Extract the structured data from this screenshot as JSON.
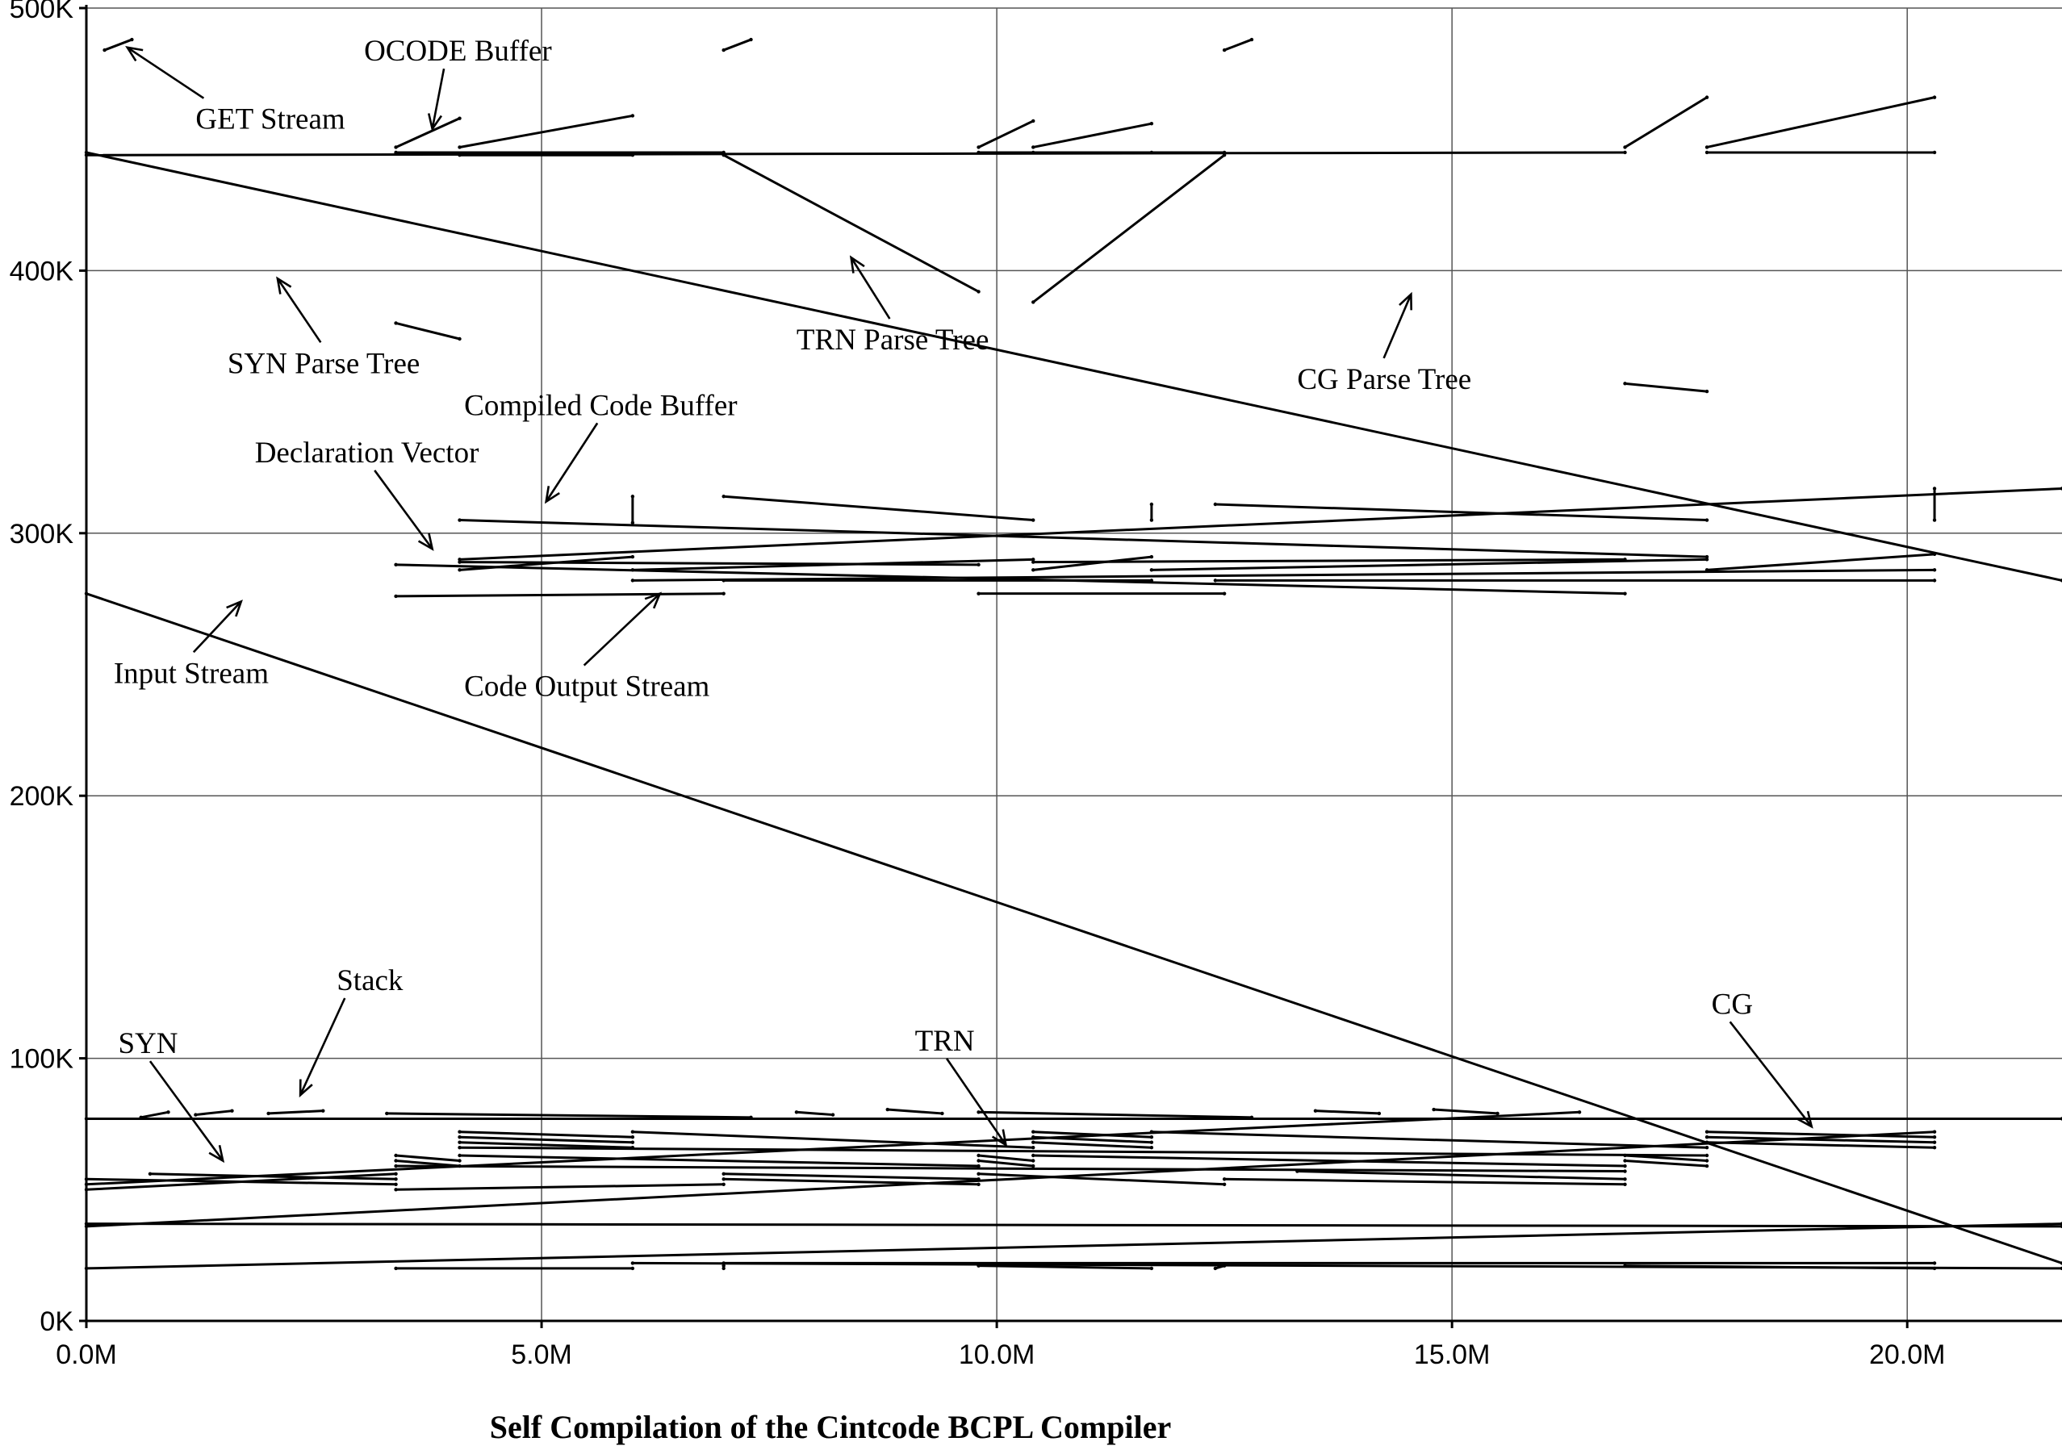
{
  "chart_data": {
    "type": "scatter",
    "title": "Self Compilation of the Cintcode BCPL Compiler",
    "xlabel": "",
    "ylabel": "",
    "xlim": [
      0,
      21700000
    ],
    "ylim": [
      0,
      500000
    ],
    "x_ticks": [
      {
        "value": 0,
        "label": "0.0M"
      },
      {
        "value": 5000000,
        "label": "5.0M"
      },
      {
        "value": 10000000,
        "label": "10.0M"
      },
      {
        "value": 15000000,
        "label": "15.0M"
      },
      {
        "value": 20000000,
        "label": "20.0M"
      }
    ],
    "y_ticks": [
      {
        "value": 0,
        "label": "0K"
      },
      {
        "value": 100000,
        "label": "100K"
      },
      {
        "value": 200000,
        "label": "200K"
      },
      {
        "value": 300000,
        "label": "300K"
      },
      {
        "value": 400000,
        "label": "400K"
      },
      {
        "value": 500000,
        "label": "500K"
      }
    ],
    "grid": true,
    "colors": {
      "ink": "#000000",
      "grid": "#555555",
      "background": "#ffffff"
    },
    "annotations": [
      {
        "text": "GET Stream",
        "x": 1200000,
        "y": 454000,
        "arrow_to": [
          450000,
          485000
        ]
      },
      {
        "text": "OCODE Buffer",
        "x": 3050000,
        "y": 480000,
        "arrow_to": [
          3800000,
          454000
        ]
      },
      {
        "text": "SYN Parse Tree",
        "x": 1550000,
        "y": 361000,
        "arrow_to": [
          2100000,
          397000
        ]
      },
      {
        "text": "TRN Parse Tree",
        "x": 7800000,
        "y": 370000,
        "arrow_to": [
          8400000,
          405000
        ]
      },
      {
        "text": "CG Parse Tree",
        "x": 13300000,
        "y": 355000,
        "arrow_to": [
          14550000,
          391000
        ]
      },
      {
        "text": "Compiled Code Buffer",
        "x": 4150000,
        "y": 345000,
        "arrow_to": [
          5050000,
          312000
        ]
      },
      {
        "text": "Declaration Vector",
        "x": 1850000,
        "y": 327000,
        "arrow_to": [
          3800000,
          294000
        ]
      },
      {
        "text": "Input Stream",
        "x": 300000,
        "y": 243000,
        "arrow_to": [
          1700000,
          274000
        ]
      },
      {
        "text": "Code Output Stream",
        "x": 4150000,
        "y": 238000,
        "arrow_to": [
          6300000,
          277000
        ]
      },
      {
        "text": "Stack",
        "x": 2750000,
        "y": 126000,
        "arrow_to": [
          2350000,
          86000
        ]
      },
      {
        "text": "SYN",
        "x": 350000,
        "y": 102000,
        "arrow_to": [
          1500000,
          61000
        ]
      },
      {
        "text": "TRN",
        "x": 9100000,
        "y": 103000,
        "arrow_to": [
          10100000,
          67000
        ]
      },
      {
        "text": "CG",
        "x": 17850000,
        "y": 117000,
        "arrow_to": [
          18950000,
          74000
        ]
      }
    ],
    "series": [
      {
        "values": [
          {
            "x": 0,
            "y": 77000
          },
          {
            "x": 21700000,
            "y": 77000
          },
          {
            "x": 600000,
            "y": 77500
          },
          {
            "x": 900000,
            "y": 79500
          },
          {
            "x": 1200000,
            "y": 78500
          },
          {
            "x": 1600000,
            "y": 80000
          },
          {
            "x": 2000000,
            "y": 79000
          },
          {
            "x": 2600000,
            "y": 80000
          },
          {
            "x": 3300000,
            "y": 79000
          },
          {
            "x": 7300000,
            "y": 77500
          },
          {
            "x": 7800000,
            "y": 79500
          },
          {
            "x": 8200000,
            "y": 78500
          },
          {
            "x": 8800000,
            "y": 80500
          },
          {
            "x": 9400000,
            "y": 79000
          },
          {
            "x": 9800000,
            "y": 79500
          },
          {
            "x": 12800000,
            "y": 77500
          },
          {
            "x": 13500000,
            "y": 80000
          },
          {
            "x": 14200000,
            "y": 79000
          },
          {
            "x": 14800000,
            "y": 80500
          },
          {
            "x": 15500000,
            "y": 79000
          },
          {
            "x": 16400000,
            "y": 79500
          },
          {
            "x": 0,
            "y": 52000
          },
          {
            "x": 3400000,
            "y": 52000
          },
          {
            "x": 0,
            "y": 54000
          },
          {
            "x": 3400000,
            "y": 54000
          },
          {
            "x": 700000,
            "y": 56000
          },
          {
            "x": 3400000,
            "y": 56000
          },
          {
            "x": 0,
            "y": 50000
          },
          {
            "x": 3400000,
            "y": 50000
          },
          {
            "x": 7000000,
            "y": 52000
          },
          {
            "x": 9800000,
            "y": 52000
          },
          {
            "x": 7000000,
            "y": 54000
          },
          {
            "x": 9800000,
            "y": 54000
          },
          {
            "x": 7000000,
            "y": 56000
          },
          {
            "x": 9800000,
            "y": 56000
          },
          {
            "x": 12500000,
            "y": 52000
          },
          {
            "x": 16900000,
            "y": 52000
          },
          {
            "x": 12500000,
            "y": 54000
          },
          {
            "x": 16900000,
            "y": 54000
          },
          {
            "x": 13300000,
            "y": 57000
          },
          {
            "x": 16900000,
            "y": 57000
          },
          {
            "x": 3400000,
            "y": 59000
          },
          {
            "x": 4100000,
            "y": 59000
          },
          {
            "x": 3400000,
            "y": 61000
          },
          {
            "x": 4100000,
            "y": 61000
          },
          {
            "x": 3400000,
            "y": 63000
          },
          {
            "x": 4100000,
            "y": 63000
          },
          {
            "x": 9800000,
            "y": 59000
          },
          {
            "x": 10400000,
            "y": 59000
          },
          {
            "x": 9800000,
            "y": 61000
          },
          {
            "x": 10400000,
            "y": 61000
          },
          {
            "x": 9800000,
            "y": 63000
          },
          {
            "x": 10400000,
            "y": 63000
          },
          {
            "x": 16900000,
            "y": 59000
          },
          {
            "x": 17800000,
            "y": 59000
          },
          {
            "x": 16900000,
            "y": 61000
          },
          {
            "x": 17800000,
            "y": 61000
          },
          {
            "x": 16900000,
            "y": 63000
          },
          {
            "x": 17800000,
            "y": 63000
          },
          {
            "x": 4100000,
            "y": 66000
          },
          {
            "x": 6000000,
            "y": 66000
          },
          {
            "x": 4100000,
            "y": 68000
          },
          {
            "x": 6000000,
            "y": 68000
          },
          {
            "x": 4100000,
            "y": 70000
          },
          {
            "x": 6000000,
            "y": 70000
          },
          {
            "x": 4100000,
            "y": 72000
          },
          {
            "x": 6000000,
            "y": 72000
          },
          {
            "x": 10400000,
            "y": 66000
          },
          {
            "x": 11700000,
            "y": 66000
          },
          {
            "x": 10400000,
            "y": 68000
          },
          {
            "x": 11700000,
            "y": 68000
          },
          {
            "x": 10400000,
            "y": 70000
          },
          {
            "x": 11700000,
            "y": 70000
          },
          {
            "x": 10400000,
            "y": 72000
          },
          {
            "x": 11700000,
            "y": 72000
          },
          {
            "x": 17800000,
            "y": 66000
          },
          {
            "x": 20300000,
            "y": 66000
          },
          {
            "x": 17800000,
            "y": 68000
          },
          {
            "x": 20300000,
            "y": 68000
          },
          {
            "x": 17800000,
            "y": 70000
          },
          {
            "x": 20300000,
            "y": 70000
          },
          {
            "x": 17800000,
            "y": 72000
          },
          {
            "x": 20300000,
            "y": 72000
          },
          {
            "x": 0,
            "y": 36000
          },
          {
            "x": 21700000,
            "y": 36000
          },
          {
            "x": 0,
            "y": 37000
          },
          {
            "x": 21700000,
            "y": 37000
          },
          {
            "x": 0,
            "y": 20000
          },
          {
            "x": 3400000,
            "y": 20000
          },
          {
            "x": 6000000,
            "y": 20000
          },
          {
            "x": 7000000,
            "y": 20000
          },
          {
            "x": 7000000,
            "y": 21000
          },
          {
            "x": 9800000,
            "y": 21000
          },
          {
            "x": 11700000,
            "y": 20000
          },
          {
            "x": 12400000,
            "y": 20000
          },
          {
            "x": 12500000,
            "y": 21000
          },
          {
            "x": 16900000,
            "y": 21000
          },
          {
            "x": 20300000,
            "y": 20000
          },
          {
            "x": 21700000,
            "y": 20000
          },
          {
            "x": 6000000,
            "y": 22000
          },
          {
            "x": 7000000,
            "y": 22000
          },
          {
            "x": 20300000,
            "y": 22000
          },
          {
            "x": 21700000,
            "y": 22000
          },
          {
            "x": 0,
            "y": 277000
          },
          {
            "x": 3400000,
            "y": 276000
          },
          {
            "x": 7000000,
            "y": 277000
          },
          {
            "x": 9800000,
            "y": 277000
          },
          {
            "x": 12500000,
            "y": 277000
          },
          {
            "x": 16900000,
            "y": 277000
          },
          {
            "x": 3400000,
            "y": 288000
          },
          {
            "x": 4100000,
            "y": 289000
          },
          {
            "x": 9800000,
            "y": 288000
          },
          {
            "x": 10400000,
            "y": 289000
          },
          {
            "x": 16900000,
            "y": 290000
          },
          {
            "x": 17800000,
            "y": 291000
          },
          {
            "x": 4100000,
            "y": 305000
          },
          {
            "x": 6000000,
            "y": 314000
          },
          {
            "x": 6000000,
            "y": 304000
          },
          {
            "x": 7000000,
            "y": 314000
          },
          {
            "x": 10400000,
            "y": 305000
          },
          {
            "x": 11700000,
            "y": 311000
          },
          {
            "x": 11700000,
            "y": 305000
          },
          {
            "x": 12400000,
            "y": 311000
          },
          {
            "x": 17800000,
            "y": 305000
          },
          {
            "x": 20300000,
            "y": 317000
          },
          {
            "x": 20300000,
            "y": 305000
          },
          {
            "x": 21700000,
            "y": 317000
          },
          {
            "x": 4100000,
            "y": 290000
          },
          {
            "x": 6000000,
            "y": 291000
          },
          {
            "x": 4100000,
            "y": 286000
          },
          {
            "x": 6000000,
            "y": 286000
          },
          {
            "x": 10400000,
            "y": 290000
          },
          {
            "x": 11700000,
            "y": 291000
          },
          {
            "x": 10400000,
            "y": 286000
          },
          {
            "x": 11700000,
            "y": 286000
          },
          {
            "x": 17800000,
            "y": 290000
          },
          {
            "x": 20300000,
            "y": 292000
          },
          {
            "x": 17800000,
            "y": 286000
          },
          {
            "x": 20300000,
            "y": 286000
          },
          {
            "x": 6000000,
            "y": 282000
          },
          {
            "x": 7000000,
            "y": 282000
          },
          {
            "x": 11700000,
            "y": 282000
          },
          {
            "x": 12400000,
            "y": 282000
          },
          {
            "x": 20300000,
            "y": 282000
          },
          {
            "x": 21700000,
            "y": 282000
          },
          {
            "x": 0,
            "y": 445000
          },
          {
            "x": 3400000,
            "y": 445000
          },
          {
            "x": 7000000,
            "y": 445000
          },
          {
            "x": 9800000,
            "y": 445000
          },
          {
            "x": 12500000,
            "y": 445000
          },
          {
            "x": 16900000,
            "y": 445000
          },
          {
            "x": 0,
            "y": 444000
          },
          {
            "x": 3400000,
            "y": 380000
          },
          {
            "x": 4100000,
            "y": 374000
          },
          {
            "x": 7000000,
            "y": 444000
          },
          {
            "x": 9800000,
            "y": 392000
          },
          {
            "x": 10400000,
            "y": 388000
          },
          {
            "x": 12500000,
            "y": 444000
          },
          {
            "x": 16900000,
            "y": 357000
          },
          {
            "x": 17800000,
            "y": 354000
          },
          {
            "x": 3400000,
            "y": 447000
          },
          {
            "x": 4100000,
            "y": 458000
          },
          {
            "x": 9800000,
            "y": 447000
          },
          {
            "x": 10400000,
            "y": 457000
          },
          {
            "x": 16900000,
            "y": 447000
          },
          {
            "x": 17800000,
            "y": 466000
          },
          {
            "x": 4100000,
            "y": 447000
          },
          {
            "x": 6000000,
            "y": 459000
          },
          {
            "x": 10400000,
            "y": 447000
          },
          {
            "x": 11700000,
            "y": 456000
          },
          {
            "x": 17800000,
            "y": 447000
          },
          {
            "x": 20300000,
            "y": 466000
          },
          {
            "x": 4100000,
            "y": 444000
          },
          {
            "x": 6000000,
            "y": 444000
          },
          {
            "x": 10400000,
            "y": 445000
          },
          {
            "x": 11700000,
            "y": 445000
          },
          {
            "x": 17800000,
            "y": 445000
          },
          {
            "x": 20300000,
            "y": 445000
          },
          {
            "x": 200000,
            "y": 484000
          },
          {
            "x": 500000,
            "y": 488000
          },
          {
            "x": 7000000,
            "y": 484000
          },
          {
            "x": 7300000,
            "y": 488000
          },
          {
            "x": 12500000,
            "y": 484000
          },
          {
            "x": 12800000,
            "y": 488000
          }
        ]
      }
    ]
  }
}
